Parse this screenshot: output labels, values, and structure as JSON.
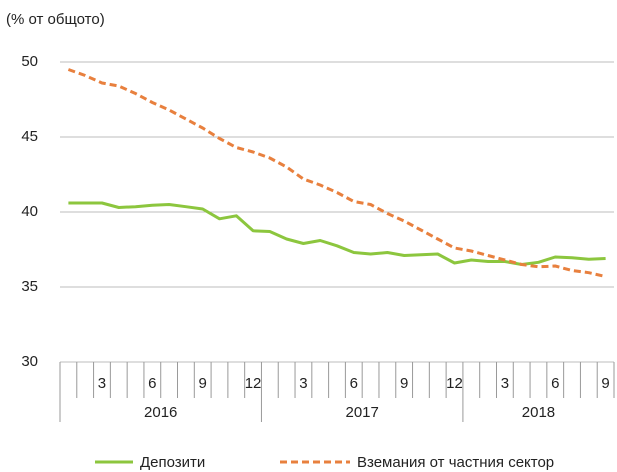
{
  "chart_data": {
    "type": "line",
    "subtitle": "(% от общото)",
    "categories": [
      null,
      null,
      "3",
      null,
      null,
      "6",
      null,
      null,
      "9",
      null,
      null,
      "12",
      null,
      null,
      "3",
      null,
      null,
      "6",
      null,
      null,
      "9",
      null,
      null,
      "12",
      null,
      null,
      "3",
      null,
      null,
      "6",
      null,
      null,
      "9"
    ],
    "year_labels": [
      "2016",
      "2017",
      "2018"
    ],
    "ylim": [
      30,
      50
    ],
    "yticks": [
      30,
      35,
      40,
      45,
      50
    ],
    "grid": true,
    "series": [
      {
        "name": "Депозити",
        "color": "#8cc63e",
        "style": "solid",
        "values": [
          40.6,
          40.6,
          40.6,
          40.3,
          40.35,
          40.45,
          40.5,
          40.35,
          40.2,
          39.55,
          39.75,
          38.75,
          38.7,
          38.2,
          37.9,
          38.1,
          37.75,
          37.3,
          37.2,
          37.3,
          37.1,
          37.15,
          37.2,
          36.6,
          36.8,
          36.7,
          36.7,
          36.5,
          36.65,
          37.0,
          36.95,
          36.85,
          36.9
        ]
      },
      {
        "name": "Вземания от частния сектор",
        "color": "#e8803e",
        "style": "dashed",
        "values": [
          49.5,
          49.1,
          48.6,
          48.4,
          47.9,
          47.3,
          46.8,
          46.2,
          45.6,
          44.9,
          44.3,
          44.0,
          43.6,
          43.0,
          42.2,
          41.8,
          41.3,
          40.7,
          40.5,
          39.9,
          39.4,
          38.8,
          38.2,
          37.6,
          37.4,
          37.1,
          36.8,
          36.5,
          36.35,
          36.4,
          36.1,
          35.95,
          35.7
        ]
      }
    ],
    "legend": "bottom"
  }
}
